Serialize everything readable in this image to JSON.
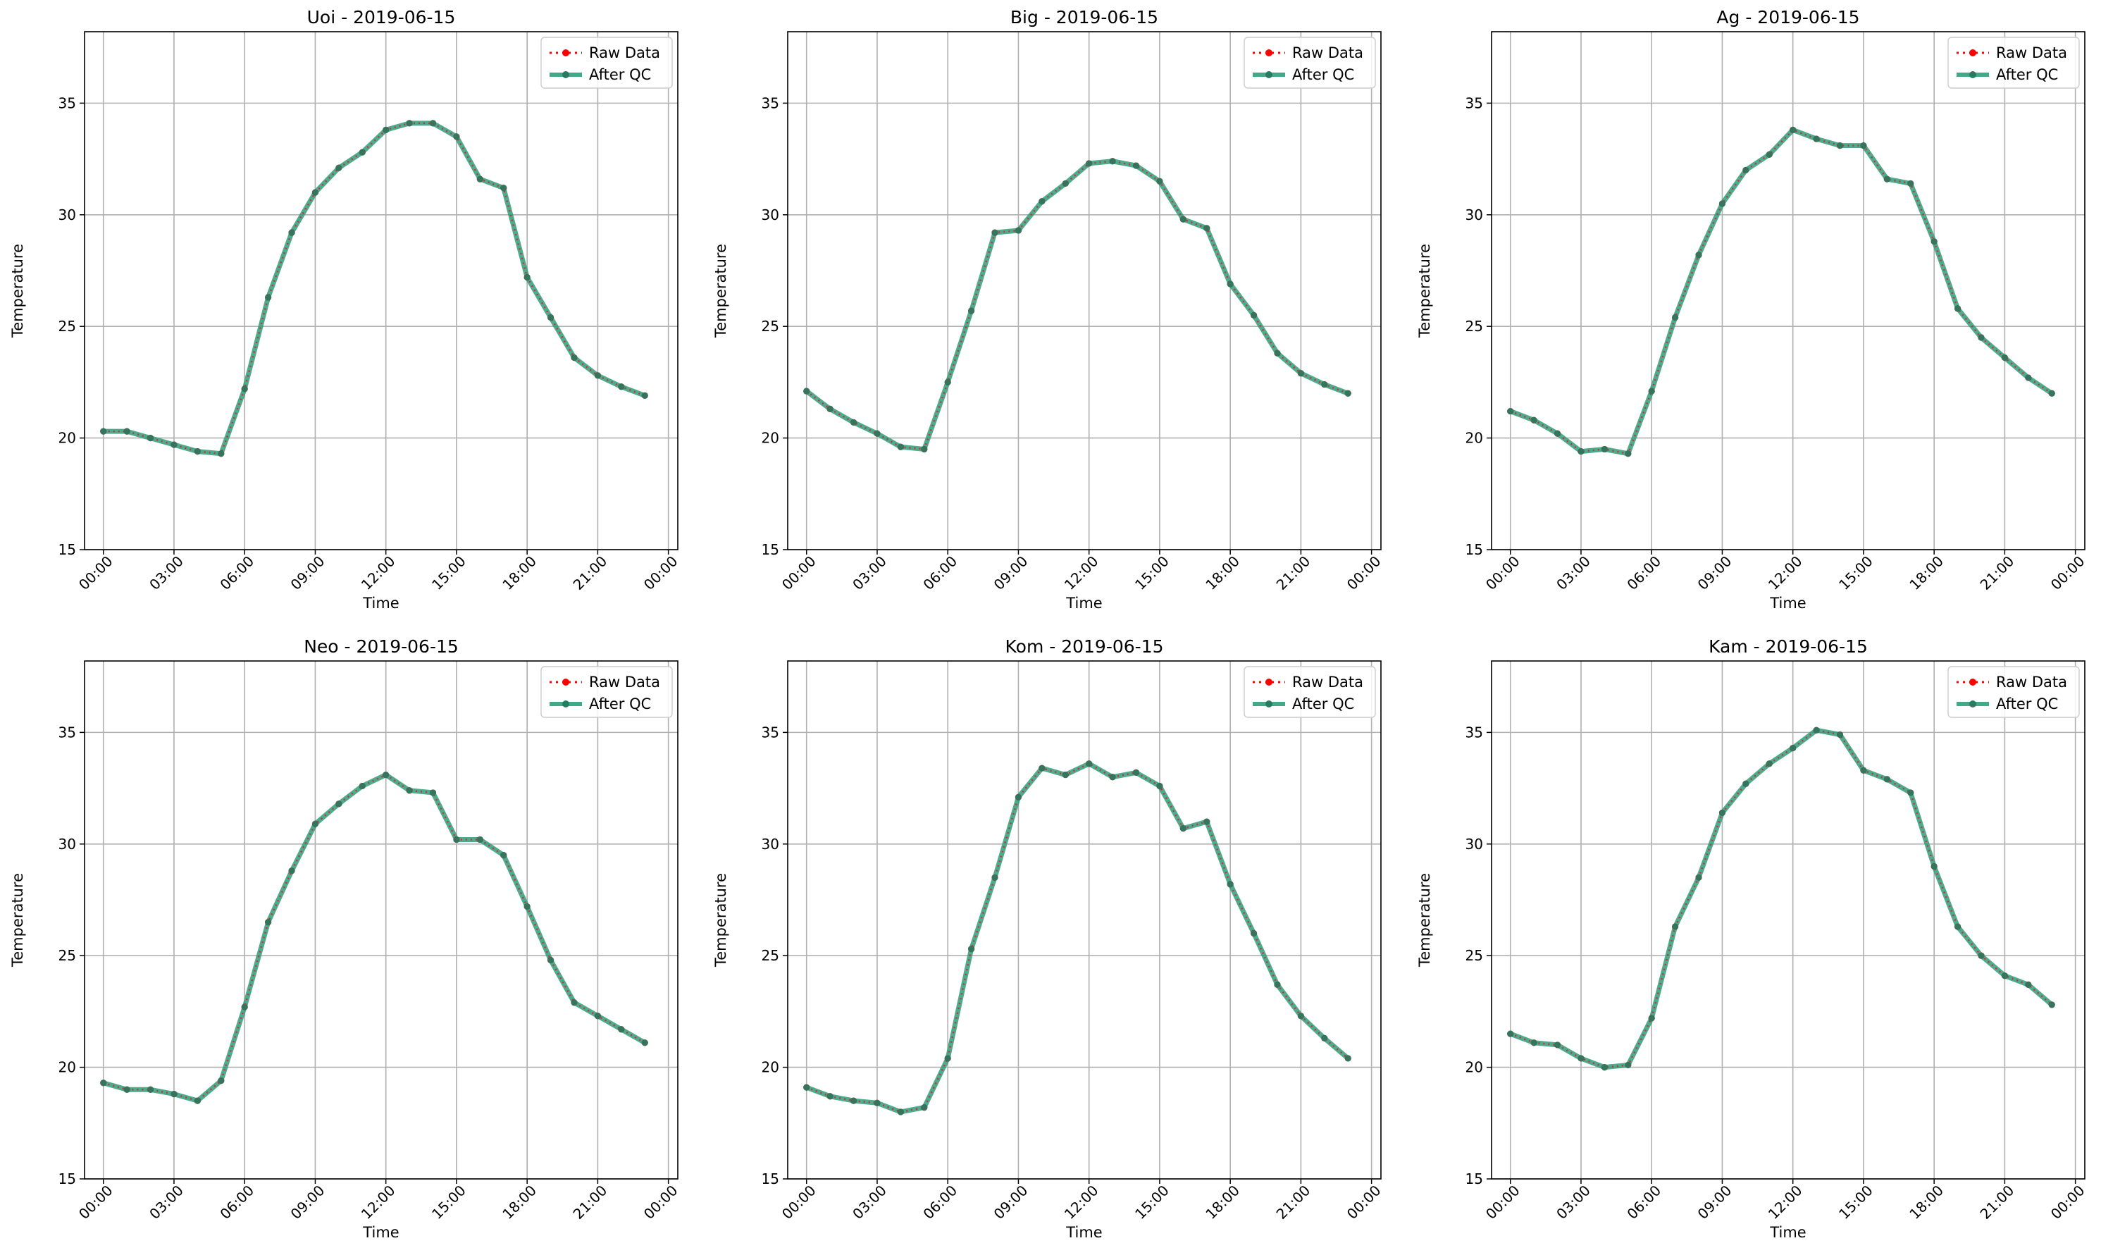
{
  "colors": {
    "raw": "#ff0000",
    "qc": "#2e9e7b",
    "grid": "#b0b0b0"
  },
  "chart_data": [
    {
      "type": "line",
      "title": "Uoi - 2019-06-15",
      "xlabel": "Time",
      "ylabel": "Temperature",
      "ylim": [
        15,
        38.2
      ],
      "yticks": [
        "15",
        "20",
        "25",
        "30",
        "35"
      ],
      "xticks": [
        "00:00",
        "03:00",
        "06:00",
        "09:00",
        "12:00",
        "15:00",
        "18:00",
        "21:00",
        "00:00"
      ],
      "x": [
        "00:00",
        "01:00",
        "02:00",
        "03:00",
        "04:00",
        "05:00",
        "06:00",
        "07:00",
        "08:00",
        "09:00",
        "10:00",
        "11:00",
        "12:00",
        "13:00",
        "14:00",
        "15:00",
        "16:00",
        "17:00",
        "18:00",
        "19:00",
        "20:00",
        "21:00",
        "22:00",
        "23:00"
      ],
      "grid": true,
      "legend": "top-right",
      "series": [
        {
          "name": "Raw Data",
          "values": [
            20.3,
            20.3,
            20.0,
            19.7,
            19.4,
            19.3,
            22.2,
            26.3,
            29.2,
            31.0,
            32.1,
            32.8,
            33.8,
            34.1,
            34.1,
            33.5,
            31.6,
            31.2,
            27.2,
            25.4,
            23.6,
            22.8,
            22.3,
            21.9
          ]
        },
        {
          "name": "After QC",
          "values": [
            20.3,
            20.3,
            20.0,
            19.7,
            19.4,
            19.3,
            22.2,
            26.3,
            29.2,
            31.0,
            32.1,
            32.8,
            33.8,
            34.1,
            34.1,
            33.5,
            31.6,
            31.2,
            27.2,
            25.4,
            23.6,
            22.8,
            22.3,
            21.9
          ]
        }
      ]
    },
    {
      "type": "line",
      "title": "Big - 2019-06-15",
      "xlabel": "Time",
      "ylabel": "Temperature",
      "ylim": [
        15,
        38.2
      ],
      "yticks": [
        "15",
        "20",
        "25",
        "30",
        "35"
      ],
      "xticks": [
        "00:00",
        "03:00",
        "06:00",
        "09:00",
        "12:00",
        "15:00",
        "18:00",
        "21:00",
        "00:00"
      ],
      "x": [
        "00:00",
        "01:00",
        "02:00",
        "03:00",
        "04:00",
        "05:00",
        "06:00",
        "07:00",
        "08:00",
        "09:00",
        "10:00",
        "11:00",
        "12:00",
        "13:00",
        "14:00",
        "15:00",
        "16:00",
        "17:00",
        "18:00",
        "19:00",
        "20:00",
        "21:00",
        "22:00",
        "23:00"
      ],
      "grid": true,
      "legend": "top-right",
      "series": [
        {
          "name": "Raw Data",
          "values": [
            22.1,
            21.3,
            20.7,
            20.2,
            19.6,
            19.5,
            22.5,
            25.7,
            29.2,
            29.3,
            30.6,
            31.4,
            32.3,
            32.4,
            32.2,
            31.5,
            29.8,
            29.4,
            26.9,
            25.5,
            23.8,
            22.9,
            22.4,
            22.0
          ]
        },
        {
          "name": "After QC",
          "values": [
            22.1,
            21.3,
            20.7,
            20.2,
            19.6,
            19.5,
            22.5,
            25.7,
            29.2,
            29.3,
            30.6,
            31.4,
            32.3,
            32.4,
            32.2,
            31.5,
            29.8,
            29.4,
            26.9,
            25.5,
            23.8,
            22.9,
            22.4,
            22.0
          ]
        }
      ]
    },
    {
      "type": "line",
      "title": "Ag - 2019-06-15",
      "xlabel": "Time",
      "ylabel": "Temperature",
      "ylim": [
        15,
        38.2
      ],
      "yticks": [
        "15",
        "20",
        "25",
        "30",
        "35"
      ],
      "xticks": [
        "00:00",
        "03:00",
        "06:00",
        "09:00",
        "12:00",
        "15:00",
        "18:00",
        "21:00",
        "00:00"
      ],
      "x": [
        "00:00",
        "01:00",
        "02:00",
        "03:00",
        "04:00",
        "05:00",
        "06:00",
        "07:00",
        "08:00",
        "09:00",
        "10:00",
        "11:00",
        "12:00",
        "13:00",
        "14:00",
        "15:00",
        "16:00",
        "17:00",
        "18:00",
        "19:00",
        "20:00",
        "21:00",
        "22:00",
        "23:00"
      ],
      "grid": true,
      "legend": "top-right",
      "series": [
        {
          "name": "Raw Data",
          "values": [
            21.2,
            20.8,
            20.2,
            19.4,
            19.5,
            19.3,
            22.1,
            25.4,
            28.2,
            30.5,
            32.0,
            32.7,
            33.8,
            33.4,
            33.1,
            33.1,
            31.6,
            31.4,
            28.8,
            25.8,
            24.5,
            23.6,
            22.7,
            22.0
          ]
        },
        {
          "name": "After QC",
          "values": [
            21.2,
            20.8,
            20.2,
            19.4,
            19.5,
            19.3,
            22.1,
            25.4,
            28.2,
            30.5,
            32.0,
            32.7,
            33.8,
            33.4,
            33.1,
            33.1,
            31.6,
            31.4,
            28.8,
            25.8,
            24.5,
            23.6,
            22.7,
            22.0
          ]
        }
      ]
    },
    {
      "type": "line",
      "title": "Neo - 2019-06-15",
      "xlabel": "Time",
      "ylabel": "Temperature",
      "ylim": [
        15,
        38.2
      ],
      "yticks": [
        "15",
        "20",
        "25",
        "30",
        "35"
      ],
      "xticks": [
        "00:00",
        "03:00",
        "06:00",
        "09:00",
        "12:00",
        "15:00",
        "18:00",
        "21:00",
        "00:00"
      ],
      "x": [
        "00:00",
        "01:00",
        "02:00",
        "03:00",
        "04:00",
        "05:00",
        "06:00",
        "07:00",
        "08:00",
        "09:00",
        "10:00",
        "11:00",
        "12:00",
        "13:00",
        "14:00",
        "15:00",
        "16:00",
        "17:00",
        "18:00",
        "19:00",
        "20:00",
        "21:00",
        "22:00",
        "23:00"
      ],
      "grid": true,
      "legend": "top-right",
      "series": [
        {
          "name": "Raw Data",
          "values": [
            19.3,
            19.0,
            19.0,
            18.8,
            18.5,
            19.4,
            22.7,
            26.5,
            28.8,
            30.9,
            31.8,
            32.6,
            33.1,
            32.4,
            32.3,
            30.2,
            30.2,
            29.5,
            27.2,
            24.8,
            22.9,
            22.3,
            21.7,
            21.1
          ]
        },
        {
          "name": "After QC",
          "values": [
            19.3,
            19.0,
            19.0,
            18.8,
            18.5,
            19.4,
            22.7,
            26.5,
            28.8,
            30.9,
            31.8,
            32.6,
            33.1,
            32.4,
            32.3,
            30.2,
            30.2,
            29.5,
            27.2,
            24.8,
            22.9,
            22.3,
            21.7,
            21.1
          ]
        }
      ]
    },
    {
      "type": "line",
      "title": "Kom - 2019-06-15",
      "xlabel": "Time",
      "ylabel": "Temperature",
      "ylim": [
        15,
        38.2
      ],
      "yticks": [
        "15",
        "20",
        "25",
        "30",
        "35"
      ],
      "xticks": [
        "00:00",
        "03:00",
        "06:00",
        "09:00",
        "12:00",
        "15:00",
        "18:00",
        "21:00",
        "00:00"
      ],
      "x": [
        "00:00",
        "01:00",
        "02:00",
        "03:00",
        "04:00",
        "05:00",
        "06:00",
        "07:00",
        "08:00",
        "09:00",
        "10:00",
        "11:00",
        "12:00",
        "13:00",
        "14:00",
        "15:00",
        "16:00",
        "17:00",
        "18:00",
        "19:00",
        "20:00",
        "21:00",
        "22:00",
        "23:00"
      ],
      "grid": true,
      "legend": "top-right",
      "series": [
        {
          "name": "Raw Data",
          "values": [
            19.1,
            18.7,
            18.5,
            18.4,
            18.0,
            18.2,
            20.4,
            25.3,
            28.5,
            32.1,
            33.4,
            33.1,
            33.6,
            33.0,
            33.2,
            32.6,
            30.7,
            31.0,
            28.2,
            26.0,
            23.7,
            22.3,
            21.3,
            20.4
          ]
        },
        {
          "name": "After QC",
          "values": [
            19.1,
            18.7,
            18.5,
            18.4,
            18.0,
            18.2,
            20.4,
            25.3,
            28.5,
            32.1,
            33.4,
            33.1,
            33.6,
            33.0,
            33.2,
            32.6,
            30.7,
            31.0,
            28.2,
            26.0,
            23.7,
            22.3,
            21.3,
            20.4
          ]
        }
      ]
    },
    {
      "type": "line",
      "title": "Kam - 2019-06-15",
      "xlabel": "Time",
      "ylabel": "Temperature",
      "ylim": [
        15,
        38.2
      ],
      "yticks": [
        "15",
        "20",
        "25",
        "30",
        "35"
      ],
      "xticks": [
        "00:00",
        "03:00",
        "06:00",
        "09:00",
        "12:00",
        "15:00",
        "18:00",
        "21:00",
        "00:00"
      ],
      "x": [
        "00:00",
        "01:00",
        "02:00",
        "03:00",
        "04:00",
        "05:00",
        "06:00",
        "07:00",
        "08:00",
        "09:00",
        "10:00",
        "11:00",
        "12:00",
        "13:00",
        "14:00",
        "15:00",
        "16:00",
        "17:00",
        "18:00",
        "19:00",
        "20:00",
        "21:00",
        "22:00",
        "23:00"
      ],
      "grid": true,
      "legend": "top-right",
      "series": [
        {
          "name": "Raw Data",
          "values": [
            21.5,
            21.1,
            21.0,
            20.4,
            20.0,
            20.1,
            22.2,
            26.3,
            28.5,
            31.4,
            32.7,
            33.6,
            34.3,
            35.1,
            34.9,
            33.3,
            32.9,
            32.3,
            29.0,
            26.3,
            25.0,
            24.1,
            23.7,
            22.8
          ]
        },
        {
          "name": "After QC",
          "values": [
            21.5,
            21.1,
            21.0,
            20.4,
            20.0,
            20.1,
            22.2,
            26.3,
            28.5,
            31.4,
            32.7,
            33.6,
            34.3,
            35.1,
            34.9,
            33.3,
            32.9,
            32.3,
            29.0,
            26.3,
            25.0,
            24.1,
            23.7,
            22.8
          ]
        }
      ]
    }
  ]
}
